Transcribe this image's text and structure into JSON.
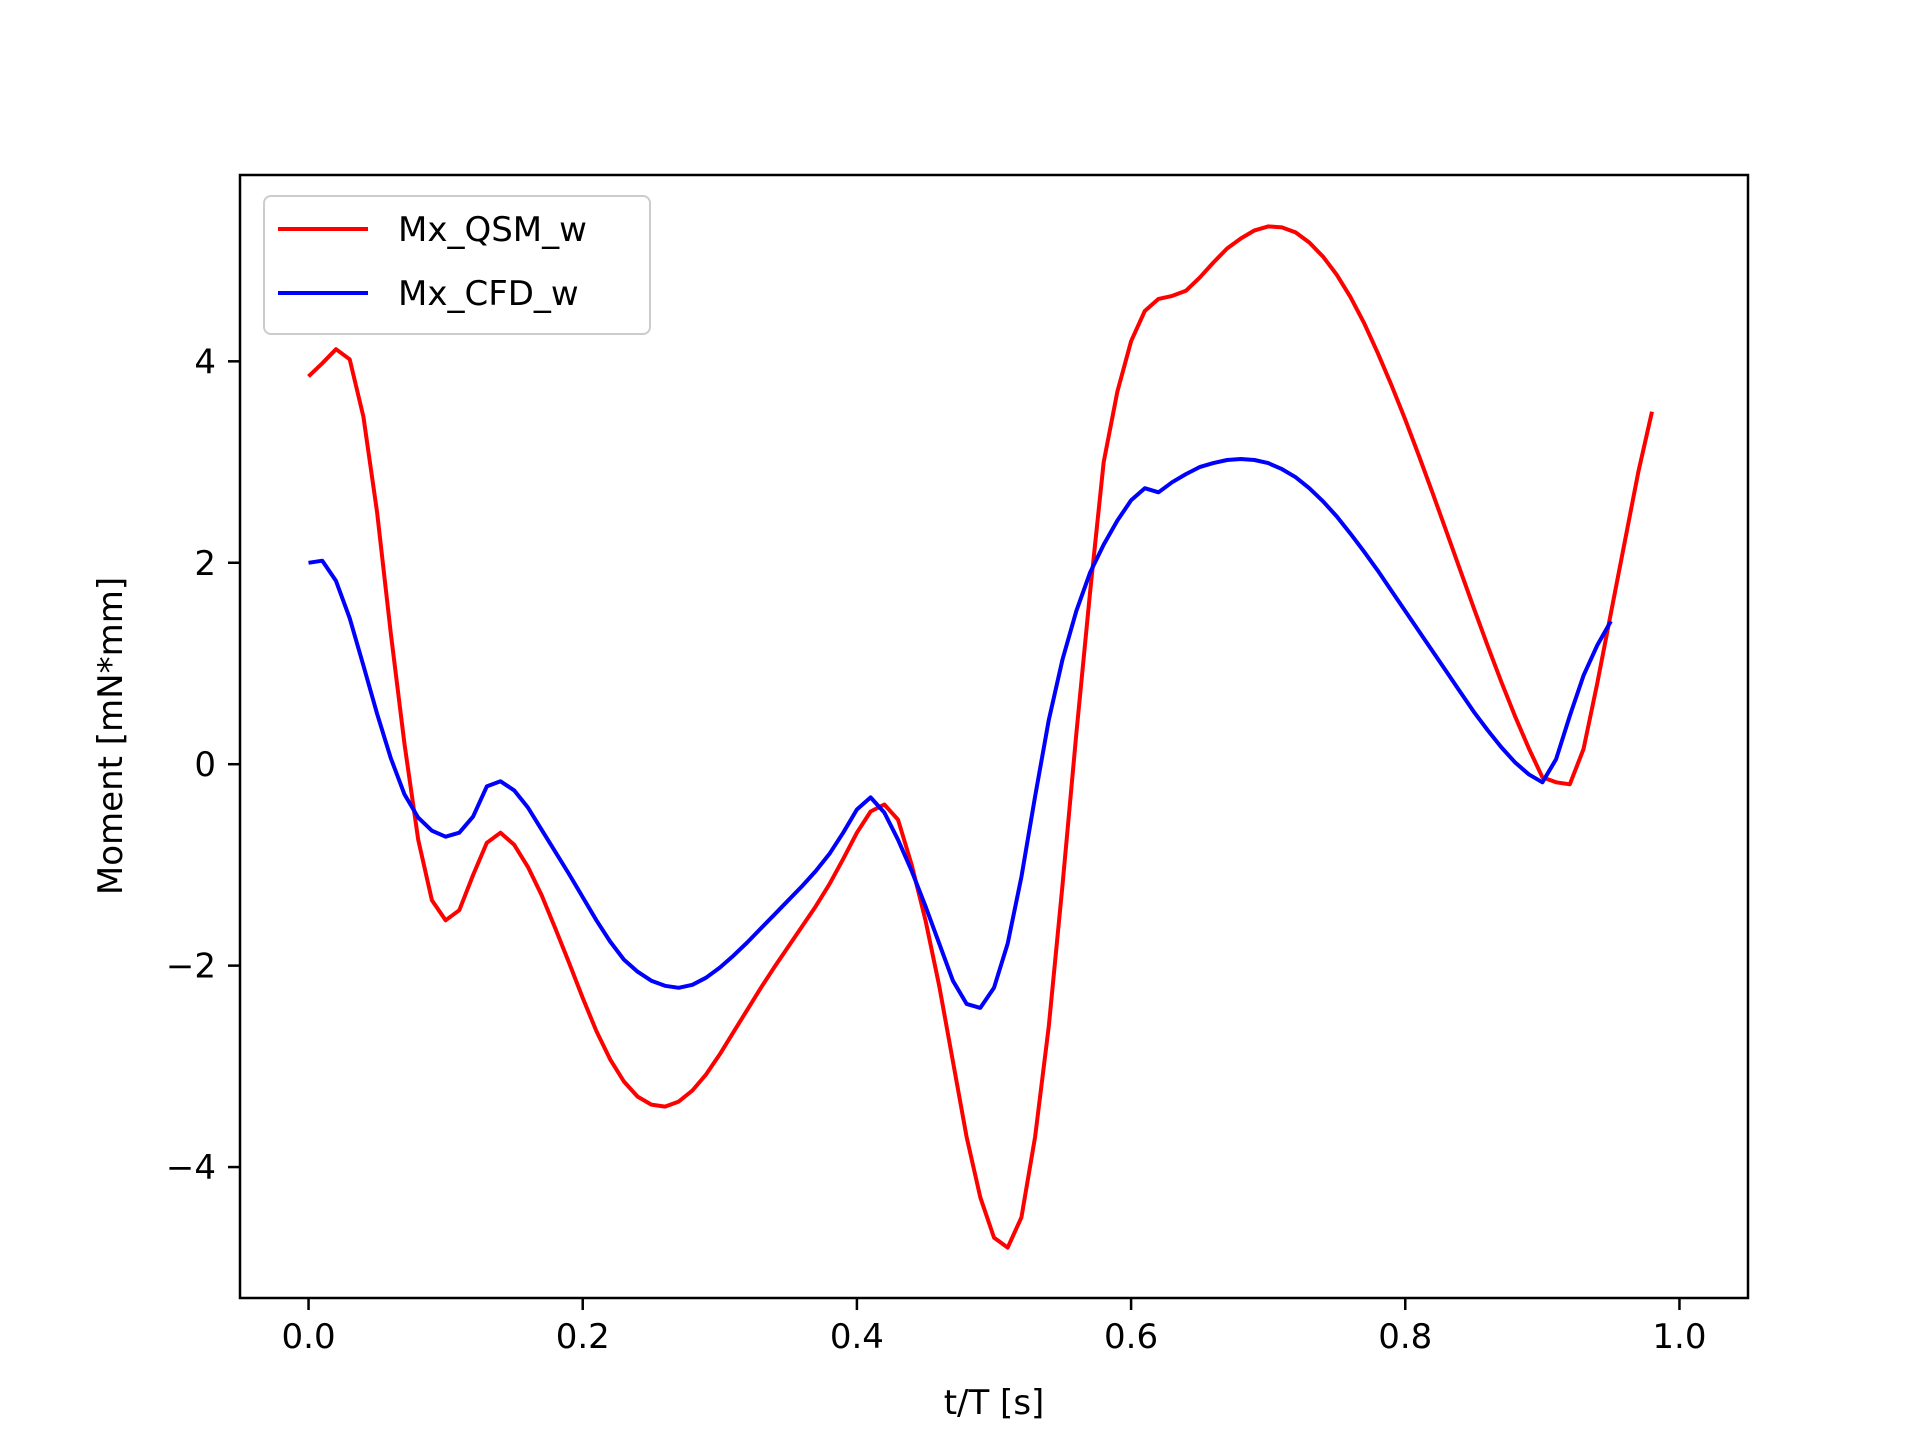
{
  "chart_data": {
    "type": "line",
    "title": "",
    "xlabel": "t/T [s]",
    "ylabel": "Moment [mN*mm]",
    "xlim": [
      -0.05,
      1.05
    ],
    "ylim": [
      -5.3,
      5.85
    ],
    "xticks": [
      0.0,
      0.2,
      0.4,
      0.6,
      0.8,
      1.0
    ],
    "xtick_labels": [
      "0.0",
      "0.2",
      "0.4",
      "0.6",
      "0.8",
      "1.0"
    ],
    "yticks": [
      -4,
      -2,
      0,
      2,
      4
    ],
    "ytick_labels": [
      "−4",
      "−2",
      "0",
      "2",
      "4"
    ],
    "grid": false,
    "legend_position": "top-left",
    "series": [
      {
        "name": "Mx_QSM_w",
        "color": "#ff0000",
        "points": [
          [
            0.0,
            3.85
          ],
          [
            0.01,
            3.98
          ],
          [
            0.02,
            4.12
          ],
          [
            0.03,
            4.02
          ],
          [
            0.04,
            3.45
          ],
          [
            0.05,
            2.5
          ],
          [
            0.06,
            1.3
          ],
          [
            0.07,
            0.2
          ],
          [
            0.08,
            -0.75
          ],
          [
            0.09,
            -1.35
          ],
          [
            0.1,
            -1.55
          ],
          [
            0.11,
            -1.45
          ],
          [
            0.12,
            -1.1
          ],
          [
            0.13,
            -0.78
          ],
          [
            0.14,
            -0.68
          ],
          [
            0.15,
            -0.8
          ],
          [
            0.16,
            -1.02
          ],
          [
            0.17,
            -1.3
          ],
          [
            0.18,
            -1.63
          ],
          [
            0.19,
            -1.97
          ],
          [
            0.2,
            -2.32
          ],
          [
            0.21,
            -2.65
          ],
          [
            0.22,
            -2.93
          ],
          [
            0.23,
            -3.15
          ],
          [
            0.24,
            -3.3
          ],
          [
            0.25,
            -3.38
          ],
          [
            0.26,
            -3.4
          ],
          [
            0.27,
            -3.35
          ],
          [
            0.28,
            -3.24
          ],
          [
            0.29,
            -3.08
          ],
          [
            0.3,
            -2.88
          ],
          [
            0.31,
            -2.66
          ],
          [
            0.32,
            -2.44
          ],
          [
            0.33,
            -2.22
          ],
          [
            0.34,
            -2.01
          ],
          [
            0.35,
            -1.81
          ],
          [
            0.36,
            -1.61
          ],
          [
            0.37,
            -1.41
          ],
          [
            0.38,
            -1.19
          ],
          [
            0.39,
            -0.94
          ],
          [
            0.4,
            -0.68
          ],
          [
            0.41,
            -0.47
          ],
          [
            0.42,
            -0.4
          ],
          [
            0.43,
            -0.55
          ],
          [
            0.44,
            -1.0
          ],
          [
            0.45,
            -1.55
          ],
          [
            0.46,
            -2.2
          ],
          [
            0.47,
            -2.95
          ],
          [
            0.48,
            -3.7
          ],
          [
            0.49,
            -4.3
          ],
          [
            0.5,
            -4.7
          ],
          [
            0.51,
            -4.8
          ],
          [
            0.52,
            -4.5
          ],
          [
            0.53,
            -3.7
          ],
          [
            0.54,
            -2.6
          ],
          [
            0.55,
            -1.2
          ],
          [
            0.56,
            0.3
          ],
          [
            0.57,
            1.7
          ],
          [
            0.58,
            3.0
          ],
          [
            0.59,
            3.7
          ],
          [
            0.6,
            4.2
          ],
          [
            0.61,
            4.5
          ],
          [
            0.62,
            4.62
          ],
          [
            0.63,
            4.65
          ],
          [
            0.64,
            4.7
          ],
          [
            0.65,
            4.83
          ],
          [
            0.66,
            4.98
          ],
          [
            0.67,
            5.12
          ],
          [
            0.68,
            5.22
          ],
          [
            0.69,
            5.3
          ],
          [
            0.7,
            5.34
          ],
          [
            0.71,
            5.33
          ],
          [
            0.72,
            5.28
          ],
          [
            0.73,
            5.18
          ],
          [
            0.74,
            5.04
          ],
          [
            0.75,
            4.86
          ],
          [
            0.76,
            4.64
          ],
          [
            0.77,
            4.38
          ],
          [
            0.78,
            4.08
          ],
          [
            0.79,
            3.76
          ],
          [
            0.8,
            3.42
          ],
          [
            0.81,
            3.06
          ],
          [
            0.82,
            2.69
          ],
          [
            0.83,
            2.31
          ],
          [
            0.84,
            1.93
          ],
          [
            0.85,
            1.55
          ],
          [
            0.86,
            1.18
          ],
          [
            0.87,
            0.82
          ],
          [
            0.88,
            0.48
          ],
          [
            0.89,
            0.16
          ],
          [
            0.9,
            -0.13
          ],
          [
            0.91,
            -0.18
          ],
          [
            0.92,
            -0.2
          ],
          [
            0.93,
            0.15
          ],
          [
            0.94,
            0.8
          ],
          [
            0.95,
            1.5
          ],
          [
            0.96,
            2.2
          ],
          [
            0.97,
            2.9
          ],
          [
            0.98,
            3.5
          ]
        ]
      },
      {
        "name": "Mx_CFD_w",
        "color": "#0000ff",
        "points": [
          [
            0.0,
            2.0
          ],
          [
            0.01,
            2.02
          ],
          [
            0.02,
            1.82
          ],
          [
            0.03,
            1.45
          ],
          [
            0.04,
            0.98
          ],
          [
            0.05,
            0.5
          ],
          [
            0.06,
            0.06
          ],
          [
            0.07,
            -0.3
          ],
          [
            0.08,
            -0.53
          ],
          [
            0.09,
            -0.66
          ],
          [
            0.1,
            -0.72
          ],
          [
            0.11,
            -0.68
          ],
          [
            0.12,
            -0.52
          ],
          [
            0.13,
            -0.22
          ],
          [
            0.14,
            -0.17
          ],
          [
            0.15,
            -0.26
          ],
          [
            0.16,
            -0.43
          ],
          [
            0.17,
            -0.65
          ],
          [
            0.18,
            -0.87
          ],
          [
            0.19,
            -1.09
          ],
          [
            0.2,
            -1.32
          ],
          [
            0.21,
            -1.55
          ],
          [
            0.22,
            -1.76
          ],
          [
            0.23,
            -1.94
          ],
          [
            0.24,
            -2.06
          ],
          [
            0.25,
            -2.15
          ],
          [
            0.26,
            -2.2
          ],
          [
            0.27,
            -2.22
          ],
          [
            0.28,
            -2.19
          ],
          [
            0.29,
            -2.12
          ],
          [
            0.3,
            -2.02
          ],
          [
            0.31,
            -1.9
          ],
          [
            0.32,
            -1.77
          ],
          [
            0.33,
            -1.63
          ],
          [
            0.34,
            -1.49
          ],
          [
            0.35,
            -1.35
          ],
          [
            0.36,
            -1.21
          ],
          [
            0.37,
            -1.06
          ],
          [
            0.38,
            -0.89
          ],
          [
            0.39,
            -0.68
          ],
          [
            0.4,
            -0.45
          ],
          [
            0.41,
            -0.33
          ],
          [
            0.42,
            -0.48
          ],
          [
            0.43,
            -0.75
          ],
          [
            0.44,
            -1.06
          ],
          [
            0.45,
            -1.41
          ],
          [
            0.46,
            -1.78
          ],
          [
            0.47,
            -2.15
          ],
          [
            0.48,
            -2.38
          ],
          [
            0.49,
            -2.42
          ],
          [
            0.5,
            -2.22
          ],
          [
            0.51,
            -1.78
          ],
          [
            0.52,
            -1.12
          ],
          [
            0.53,
            -0.32
          ],
          [
            0.54,
            0.44
          ],
          [
            0.55,
            1.04
          ],
          [
            0.56,
            1.52
          ],
          [
            0.57,
            1.9
          ],
          [
            0.58,
            2.18
          ],
          [
            0.59,
            2.42
          ],
          [
            0.6,
            2.62
          ],
          [
            0.61,
            2.74
          ],
          [
            0.62,
            2.7
          ],
          [
            0.63,
            2.8
          ],
          [
            0.64,
            2.88
          ],
          [
            0.65,
            2.95
          ],
          [
            0.66,
            2.99
          ],
          [
            0.67,
            3.02
          ],
          [
            0.68,
            3.03
          ],
          [
            0.69,
            3.02
          ],
          [
            0.7,
            2.99
          ],
          [
            0.71,
            2.93
          ],
          [
            0.72,
            2.85
          ],
          [
            0.73,
            2.74
          ],
          [
            0.74,
            2.61
          ],
          [
            0.75,
            2.46
          ],
          [
            0.76,
            2.29
          ],
          [
            0.77,
            2.11
          ],
          [
            0.78,
            1.92
          ],
          [
            0.79,
            1.72
          ],
          [
            0.8,
            1.52
          ],
          [
            0.81,
            1.32
          ],
          [
            0.82,
            1.12
          ],
          [
            0.83,
            0.92
          ],
          [
            0.84,
            0.72
          ],
          [
            0.85,
            0.52
          ],
          [
            0.86,
            0.34
          ],
          [
            0.87,
            0.17
          ],
          [
            0.88,
            0.02
          ],
          [
            0.89,
            -0.1
          ],
          [
            0.9,
            -0.18
          ],
          [
            0.91,
            0.05
          ],
          [
            0.92,
            0.48
          ],
          [
            0.93,
            0.88
          ],
          [
            0.94,
            1.18
          ],
          [
            0.95,
            1.42
          ]
        ]
      }
    ]
  }
}
